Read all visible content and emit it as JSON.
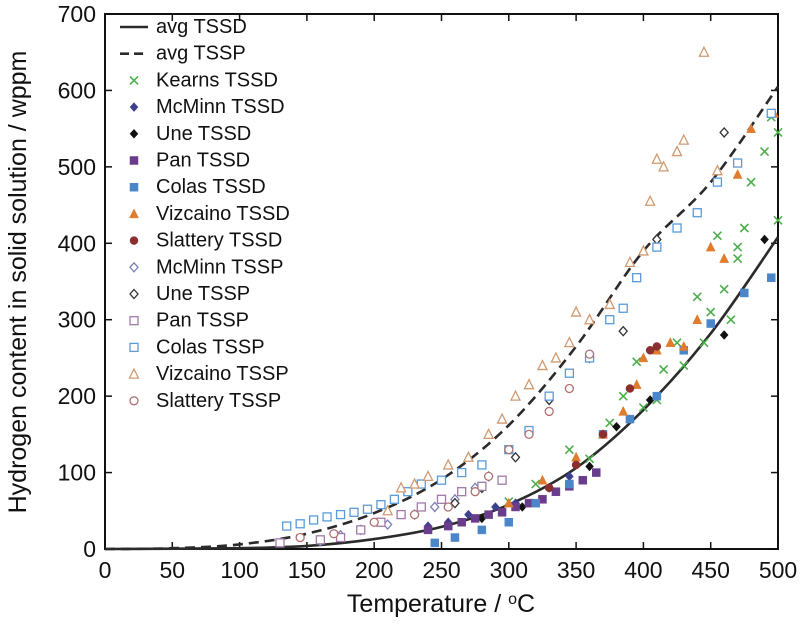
{
  "chart_data": {
    "type": "scatter",
    "xlabel": "Temperature / ",
    "xlabel_unit": "°C",
    "ylabel": "Hydrogen content in solid solution / wppm",
    "xlim": [
      0,
      500
    ],
    "ylim": [
      0,
      700
    ],
    "xticks": [
      "0",
      "50",
      "100",
      "150",
      "200",
      "250",
      "300",
      "350",
      "400",
      "450",
      "500"
    ],
    "yticks": [
      "0",
      "100",
      "200",
      "300",
      "400",
      "500",
      "600",
      "700"
    ],
    "grid": false,
    "legend_position": "top-left",
    "curves": [
      {
        "name": "avg TSSD",
        "style": "solid",
        "color": "#2b2b2b",
        "points": [
          [
            0,
            0
          ],
          [
            100,
            1
          ],
          [
            150,
            4
          ],
          [
            200,
            13
          ],
          [
            250,
            29
          ],
          [
            300,
            58
          ],
          [
            350,
            106
          ],
          [
            400,
            182
          ],
          [
            450,
            282
          ],
          [
            500,
            408
          ]
        ]
      },
      {
        "name": "avg TSSP",
        "style": "dashed",
        "color": "#2b2b2b",
        "points": [
          [
            0,
            0
          ],
          [
            50,
            1
          ],
          [
            100,
            6
          ],
          [
            150,
            20
          ],
          [
            200,
            47
          ],
          [
            250,
            91
          ],
          [
            300,
            162
          ],
          [
            350,
            265
          ],
          [
            400,
            390
          ],
          [
            450,
            480
          ],
          [
            500,
            605
          ]
        ]
      }
    ],
    "series": [
      {
        "name": "Kearns TSSD",
        "marker": "x",
        "color": "#4cae4c",
        "points": [
          [
            300,
            62
          ],
          [
            320,
            85
          ],
          [
            345,
            130
          ],
          [
            360,
            118
          ],
          [
            375,
            165
          ],
          [
            385,
            200
          ],
          [
            395,
            245
          ],
          [
            400,
            185
          ],
          [
            410,
            195
          ],
          [
            415,
            235
          ],
          [
            425,
            270
          ],
          [
            430,
            240
          ],
          [
            440,
            330
          ],
          [
            445,
            270
          ],
          [
            450,
            310
          ],
          [
            455,
            410
          ],
          [
            460,
            340
          ],
          [
            465,
            300
          ],
          [
            475,
            420
          ],
          [
            480,
            480
          ],
          [
            490,
            520
          ],
          [
            500,
            430
          ],
          [
            500,
            545
          ],
          [
            495,
            565
          ],
          [
            470,
            380
          ],
          [
            470,
            395
          ]
        ]
      },
      {
        "name": "McMinn TSSD",
        "marker": "diamond",
        "color": "#3d3f8f",
        "points": [
          [
            240,
            30
          ],
          [
            255,
            35
          ],
          [
            270,
            45
          ],
          [
            290,
            55
          ],
          [
            305,
            60
          ],
          [
            330,
            80
          ],
          [
            345,
            95
          ]
        ]
      },
      {
        "name": "Une TSSD",
        "marker": "diamond",
        "color": "#111111",
        "points": [
          [
            280,
            40
          ],
          [
            310,
            55
          ],
          [
            330,
            80
          ],
          [
            360,
            108
          ],
          [
            380,
            160
          ],
          [
            405,
            195
          ],
          [
            460,
            280
          ],
          [
            490,
            405
          ]
        ]
      },
      {
        "name": "Pan TSSD",
        "marker": "square",
        "color": "#6a3d8c",
        "points": [
          [
            240,
            25
          ],
          [
            255,
            30
          ],
          [
            265,
            35
          ],
          [
            275,
            40
          ],
          [
            285,
            45
          ],
          [
            295,
            48
          ],
          [
            305,
            55
          ],
          [
            315,
            60
          ],
          [
            325,
            65
          ],
          [
            335,
            75
          ],
          [
            345,
            82
          ],
          [
            355,
            90
          ],
          [
            365,
            100
          ]
        ]
      },
      {
        "name": "Colas TSSD",
        "marker": "square",
        "color": "#4a86c8",
        "points": [
          [
            245,
            8
          ],
          [
            260,
            15
          ],
          [
            280,
            25
          ],
          [
            300,
            35
          ],
          [
            320,
            60
          ],
          [
            345,
            85
          ],
          [
            370,
            150
          ],
          [
            390,
            170
          ],
          [
            410,
            200
          ],
          [
            430,
            260
          ],
          [
            450,
            295
          ],
          [
            475,
            335
          ],
          [
            495,
            355
          ]
        ]
      },
      {
        "name": "Vizcaino TSSD",
        "marker": "triangle",
        "color": "#e07c2e",
        "points": [
          [
            300,
            60
          ],
          [
            325,
            90
          ],
          [
            350,
            120
          ],
          [
            370,
            150
          ],
          [
            385,
            180
          ],
          [
            395,
            215
          ],
          [
            400,
            250
          ],
          [
            410,
            260
          ],
          [
            420,
            270
          ],
          [
            430,
            265
          ],
          [
            440,
            300
          ],
          [
            450,
            395
          ],
          [
            460,
            380
          ],
          [
            470,
            490
          ],
          [
            480,
            550
          ],
          [
            497,
            570
          ]
        ]
      },
      {
        "name": "Slattery TSSD",
        "marker": "circle",
        "color": "#8b2e2e",
        "points": [
          [
            330,
            80
          ],
          [
            350,
            110
          ],
          [
            370,
            150
          ],
          [
            390,
            210
          ],
          [
            405,
            260
          ],
          [
            410,
            265
          ]
        ]
      },
      {
        "name": "McMinn TSSP",
        "marker": "diamond-open",
        "color": "#7a7fb5",
        "points": [
          [
            160,
            10
          ],
          [
            175,
            18
          ],
          [
            190,
            25
          ],
          [
            210,
            32
          ],
          [
            230,
            45
          ],
          [
            245,
            55
          ],
          [
            260,
            65
          ],
          [
            275,
            80
          ],
          [
            285,
            95
          ]
        ]
      },
      {
        "name": "Une TSSP",
        "marker": "diamond-open",
        "color": "#333333",
        "points": [
          [
            260,
            60
          ],
          [
            280,
            80
          ],
          [
            305,
            120
          ],
          [
            330,
            195
          ],
          [
            360,
            250
          ],
          [
            385,
            285
          ],
          [
            410,
            405
          ],
          [
            460,
            545
          ]
        ]
      },
      {
        "name": "Pan TSSP",
        "marker": "square-open",
        "color": "#a07aa8",
        "points": [
          [
            130,
            8
          ],
          [
            160,
            12
          ],
          [
            175,
            15
          ],
          [
            190,
            25
          ],
          [
            205,
            35
          ],
          [
            220,
            45
          ],
          [
            235,
            55
          ],
          [
            250,
            65
          ],
          [
            265,
            75
          ],
          [
            280,
            82
          ],
          [
            295,
            90
          ]
        ]
      },
      {
        "name": "Colas TSSP",
        "marker": "square-open",
        "color": "#5a9bd8",
        "points": [
          [
            135,
            30
          ],
          [
            145,
            33
          ],
          [
            155,
            38
          ],
          [
            165,
            42
          ],
          [
            175,
            45
          ],
          [
            185,
            48
          ],
          [
            195,
            52
          ],
          [
            205,
            58
          ],
          [
            215,
            65
          ],
          [
            225,
            75
          ],
          [
            235,
            85
          ],
          [
            250,
            90
          ],
          [
            265,
            100
          ],
          [
            280,
            110
          ],
          [
            300,
            130
          ],
          [
            315,
            155
          ],
          [
            330,
            200
          ],
          [
            345,
            230
          ],
          [
            360,
            250
          ],
          [
            375,
            300
          ],
          [
            385,
            315
          ],
          [
            395,
            355
          ],
          [
            410,
            395
          ],
          [
            425,
            420
          ],
          [
            440,
            440
          ],
          [
            455,
            480
          ],
          [
            470,
            505
          ],
          [
            495,
            570
          ]
        ]
      },
      {
        "name": "Vizcaino TSSP",
        "marker": "triangle-open",
        "color": "#d09a70",
        "points": [
          [
            210,
            50
          ],
          [
            220,
            80
          ],
          [
            230,
            85
          ],
          [
            240,
            95
          ],
          [
            255,
            110
          ],
          [
            270,
            120
          ],
          [
            285,
            150
          ],
          [
            295,
            170
          ],
          [
            305,
            200
          ],
          [
            315,
            215
          ],
          [
            325,
            240
          ],
          [
            335,
            250
          ],
          [
            345,
            270
          ],
          [
            350,
            310
          ],
          [
            360,
            300
          ],
          [
            375,
            320
          ],
          [
            390,
            375
          ],
          [
            400,
            390
          ],
          [
            405,
            455
          ],
          [
            410,
            510
          ],
          [
            415,
            500
          ],
          [
            425,
            520
          ],
          [
            430,
            535
          ],
          [
            445,
            650
          ],
          [
            455,
            495
          ]
        ]
      },
      {
        "name": "Slattery TSSP",
        "marker": "circle-open",
        "color": "#b07070",
        "points": [
          [
            145,
            15
          ],
          [
            170,
            20
          ],
          [
            200,
            35
          ],
          [
            230,
            45
          ],
          [
            255,
            55
          ],
          [
            275,
            75
          ],
          [
            285,
            95
          ],
          [
            300,
            130
          ],
          [
            315,
            150
          ],
          [
            330,
            180
          ],
          [
            345,
            210
          ],
          [
            360,
            255
          ]
        ]
      }
    ]
  }
}
